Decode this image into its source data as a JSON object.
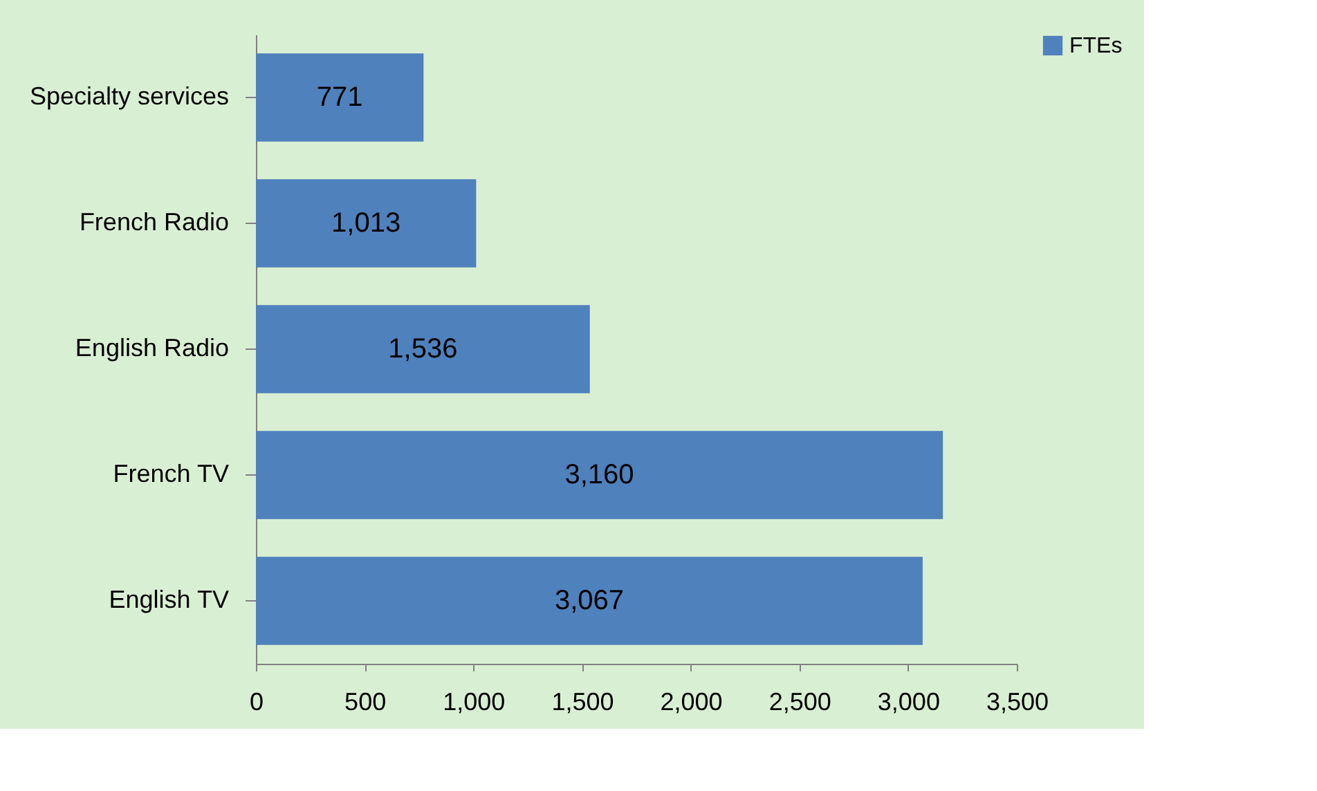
{
  "chart_data": {
    "type": "bar",
    "orientation": "horizontal",
    "categories": [
      "Specialty services",
      "French Radio",
      "English Radio",
      "French TV",
      "English TV"
    ],
    "series": [
      {
        "name": "FTEs",
        "color": "#4f81bd",
        "values": [
          771,
          1013,
          1536,
          3160,
          3067
        ],
        "value_labels": [
          "771",
          "1,013",
          "1,536",
          "3,160",
          "3,067"
        ]
      }
    ],
    "xlim": [
      0,
      3500
    ],
    "xticks": [
      0,
      500,
      {
        "value": 1000,
        "label": "1,000"
      },
      {
        "value": 1500,
        "label": "1,500"
      },
      {
        "value": 2000,
        "label": "2,000"
      },
      {
        "value": 2500,
        "label": "2,500"
      },
      {
        "value": 3000,
        "label": "3,000"
      },
      {
        "value": 3500,
        "label": "3,500"
      }
    ],
    "grid": false,
    "legend": "right"
  }
}
